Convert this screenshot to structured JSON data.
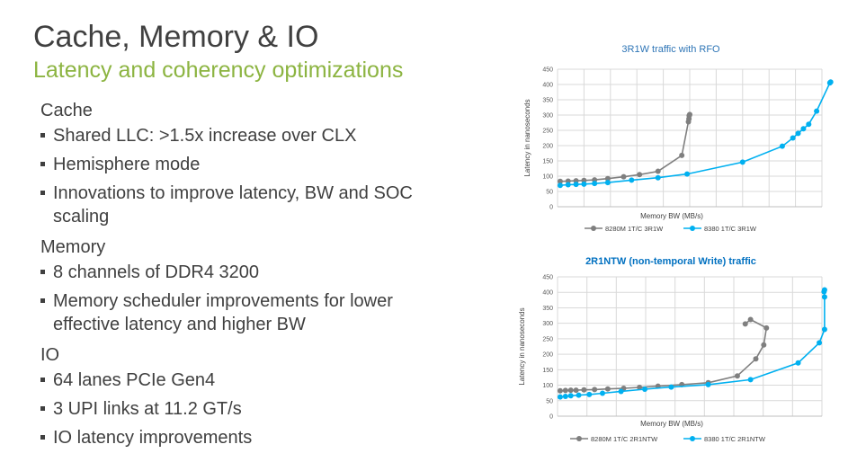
{
  "slide": {
    "title": "Cache, Memory & IO",
    "subtitle": "Latency and coherency optimizations",
    "sections": [
      {
        "heading": "Cache",
        "bullets": [
          "Shared LLC: >1.5x increase over CLX",
          "Hemisphere mode",
          "Innovations to improve latency, BW and SOC scaling"
        ]
      },
      {
        "heading": "Memory",
        "bullets": [
          "8 channels of DDR4 3200",
          "Memory scheduler improvements for lower effective latency and higher BW"
        ]
      },
      {
        "heading": "IO",
        "bullets": [
          "64 lanes PCIe Gen4",
          "3 UPI links at 11.2 GT/s",
          "IO latency improvements"
        ]
      }
    ]
  },
  "colors": {
    "text": "#404040",
    "accent": "#8cb441",
    "series_gray": "#7f7f7f",
    "series_blue": "#00b0f0",
    "chart1_title": "#2e75b6",
    "chart2_title": "#0070c0"
  },
  "chart_data": [
    {
      "type": "line",
      "title": "3R1W traffic with RFO",
      "title_bold": false,
      "xlabel": "Memory BW (MB/s)",
      "ylabel": "Latency in nanoseconds",
      "ylim": [
        0,
        450
      ],
      "xlim": [
        0,
        100
      ],
      "yticks": [
        0,
        50,
        100,
        150,
        200,
        250,
        300,
        350,
        400,
        450
      ],
      "xgrid_count": 10,
      "series": [
        {
          "name": "8280M 1T/C 3R1W",
          "color": "#7f7f7f",
          "points": [
            [
              1,
              83
            ],
            [
              4,
              84
            ],
            [
              7,
              85
            ],
            [
              10,
              86
            ],
            [
              14,
              88
            ],
            [
              19,
              92
            ],
            [
              25,
              98
            ],
            [
              31,
              105
            ],
            [
              38,
              116
            ],
            [
              47,
              168
            ],
            [
              49.5,
              278
            ],
            [
              49.7,
              288
            ],
            [
              49.8,
              298
            ],
            [
              50,
              302
            ]
          ]
        },
        {
          "name": "8380 1T/C 3R1W",
          "color": "#00b0f0",
          "points": [
            [
              1,
              70
            ],
            [
              4,
              72
            ],
            [
              7,
              73
            ],
            [
              10,
              74
            ],
            [
              14,
              76
            ],
            [
              19,
              79
            ],
            [
              28,
              87
            ],
            [
              38,
              95
            ],
            [
              49,
              107
            ],
            [
              70,
              146
            ],
            [
              85,
              198
            ],
            [
              89,
              225
            ],
            [
              91,
              240
            ],
            [
              93,
              255
            ],
            [
              95,
              270
            ],
            [
              98,
              313
            ],
            [
              103,
              405
            ],
            [
              103.3,
              408
            ]
          ]
        }
      ]
    },
    {
      "type": "line",
      "title": "2R1NTW (non-temporal Write) traffic",
      "title_bold": true,
      "xlabel": "Memory BW (MB/s)",
      "ylabel": "Latency in nanoseconds",
      "ylim": [
        0,
        450
      ],
      "xlim": [
        0,
        100
      ],
      "yticks": [
        0,
        50,
        100,
        150,
        200,
        250,
        300,
        350,
        400,
        450
      ],
      "xgrid_count": 9,
      "series": [
        {
          "name": "8280M 1T/C 2R1NTW",
          "color": "#7f7f7f",
          "points": [
            [
              1,
              82
            ],
            [
              3,
              83
            ],
            [
              5,
              84
            ],
            [
              7,
              84
            ],
            [
              10,
              85
            ],
            [
              14,
              86
            ],
            [
              19,
              88
            ],
            [
              25,
              90
            ],
            [
              31,
              93
            ],
            [
              38,
              97
            ],
            [
              47,
              102
            ],
            [
              57,
              108
            ],
            [
              68,
              130
            ],
            [
              75,
              185
            ],
            [
              78,
              230
            ],
            [
              79,
              285
            ],
            [
              73,
              312
            ],
            [
              71,
              298
            ]
          ]
        },
        {
          "name": "8380 1T/C 2R1NTW",
          "color": "#00b0f0",
          "points": [
            [
              1,
              62
            ],
            [
              3,
              64
            ],
            [
              5,
              66
            ],
            [
              8,
              68
            ],
            [
              12,
              70
            ],
            [
              17,
              74
            ],
            [
              24,
              80
            ],
            [
              33,
              87
            ],
            [
              43,
              94
            ],
            [
              57,
              102
            ],
            [
              73,
              118
            ],
            [
              91,
              172
            ],
            [
              99,
              237
            ],
            [
              101,
              280
            ],
            [
              101,
              385
            ],
            [
              100.8,
              402
            ],
            [
              101,
              408
            ]
          ]
        }
      ]
    }
  ]
}
